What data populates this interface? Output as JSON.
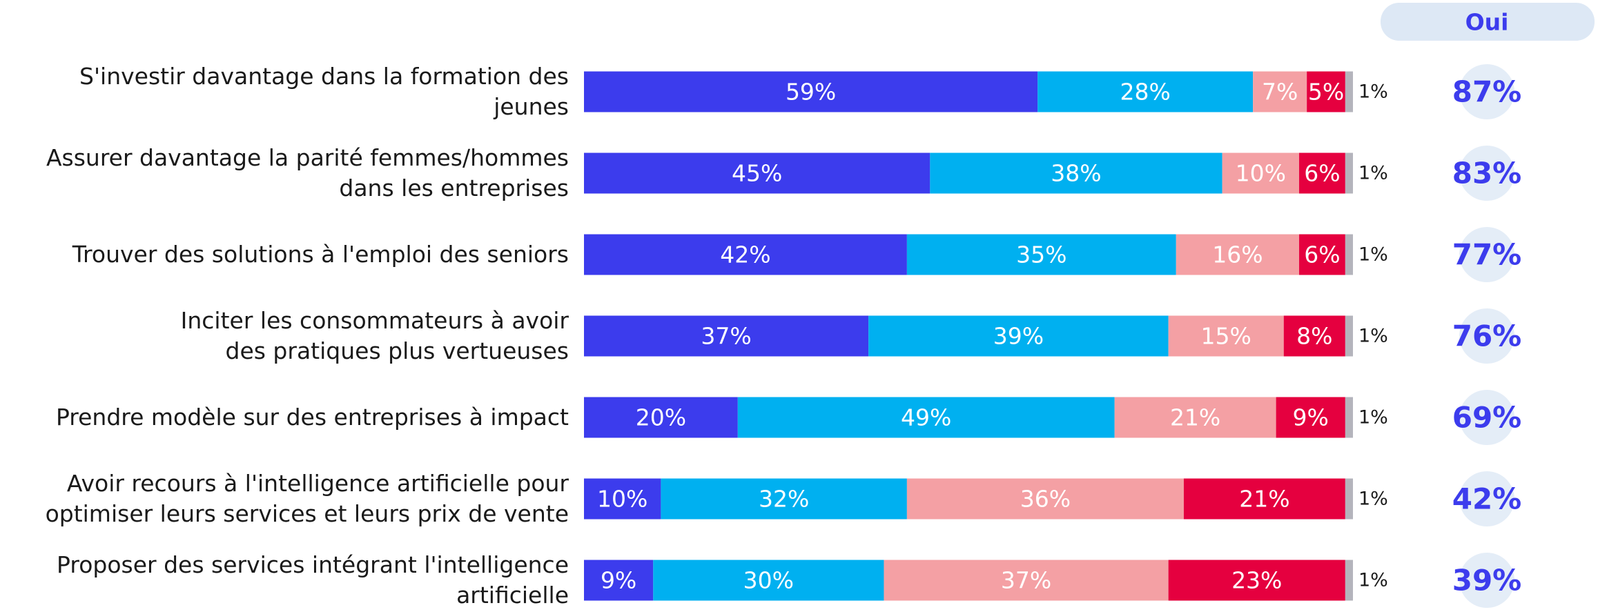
{
  "chart_data": {
    "type": "stacked-bar-horizontal",
    "categories": [
      "S'investir davantage dans la formation des jeunes",
      "Assurer davantage la parité femmes/hommes\ndans les entreprises",
      "Trouver des solutions à l'emploi des seniors",
      "Inciter les consommateurs à avoir\ndes pratiques plus vertueuses",
      "Prendre modèle sur des entreprises à impact",
      "Avoir recours à l'intelligence artificielle pour\noptimiser leurs services et leurs prix de vente",
      "Proposer des services intégrant l'intelligence\nartificielle"
    ],
    "xlim": [
      0,
      100
    ],
    "series": [
      {
        "color": "#3c3ced",
        "values": [
          59,
          45,
          42,
          37,
          20,
          10,
          9
        ],
        "value_labels": [
          "59%",
          "45%",
          "42%",
          "37%",
          "20%",
          "10%",
          "9%"
        ]
      },
      {
        "color": "#00b0f0",
        "values": [
          28,
          38,
          35,
          39,
          49,
          32,
          30
        ],
        "value_labels": [
          "28%",
          "38%",
          "35%",
          "39%",
          "49%",
          "32%",
          "30%"
        ]
      },
      {
        "color": "#f4a0a4",
        "values": [
          7,
          10,
          16,
          15,
          21,
          36,
          37
        ],
        "value_labels": [
          "7%",
          "10%",
          "16%",
          "15%",
          "21%",
          "36%",
          "37%"
        ]
      },
      {
        "color": "#e5003f",
        "values": [
          5,
          6,
          6,
          8,
          9,
          21,
          23
        ],
        "value_labels": [
          "5%",
          "6%",
          "6%",
          "8%",
          "9%",
          "21%",
          "23%"
        ]
      },
      {
        "color": "#b4b4bc",
        "values": [
          1,
          1,
          1,
          1,
          1,
          1,
          1
        ],
        "value_labels": [
          "1%",
          "1%",
          "1%",
          "1%",
          "1%",
          "1%",
          "1%"
        ]
      }
    ],
    "totals": {
      "title": "Oui",
      "values": [
        87,
        83,
        77,
        76,
        69,
        42,
        39
      ],
      "value_labels": [
        "87%",
        "83%",
        "77%",
        "76%",
        "69%",
        "42%",
        "39%"
      ]
    }
  }
}
